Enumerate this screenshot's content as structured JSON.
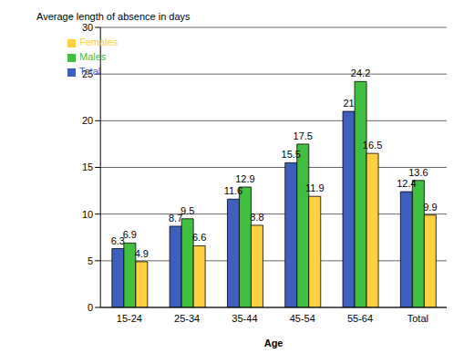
{
  "chart_data": {
    "type": "bar",
    "title": "Average length of absence in days",
    "xlabel": "Age",
    "categories": [
      "15-24",
      "25-34",
      "35-44",
      "45-54",
      "55-64",
      "Total"
    ],
    "series": [
      {
        "name": "Total",
        "color": "#3f5fbf",
        "values": [
          6.3,
          8.7,
          11.6,
          15.5,
          21,
          12.4
        ]
      },
      {
        "name": "Males",
        "color": "#40c040",
        "values": [
          6.9,
          9.5,
          12.9,
          17.5,
          24.2,
          13.6
        ]
      },
      {
        "name": "Females",
        "color": "#ffd040",
        "values": [
          4.9,
          6.6,
          8.8,
          11.9,
          16.5,
          9.9
        ]
      }
    ],
    "ylim": [
      0,
      30
    ],
    "yticks": [
      0,
      5,
      10,
      15,
      20,
      25,
      30
    ],
    "grid": true,
    "legend": "top-left",
    "data_labels": true
  }
}
